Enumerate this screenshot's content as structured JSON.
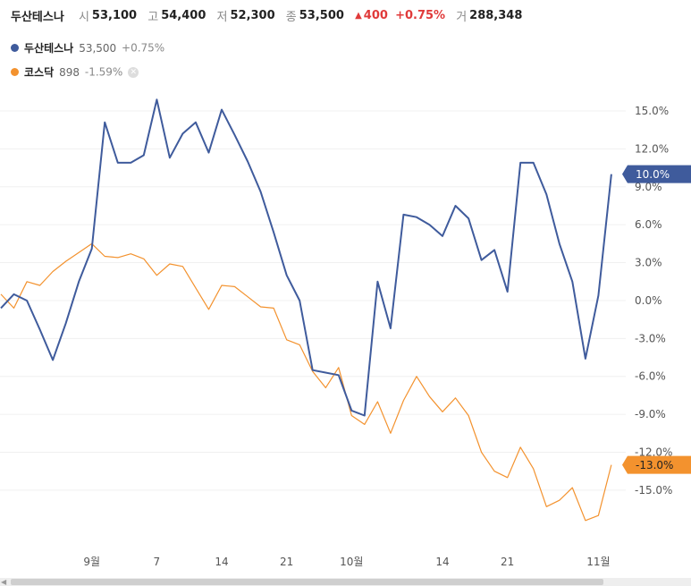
{
  "header": {
    "stock_name": "두산테스나",
    "open_label": "시",
    "open_value": "53,100",
    "high_label": "고",
    "high_value": "54,400",
    "low_label": "저",
    "low_value": "52,300",
    "close_label": "종",
    "close_value": "53,500",
    "change_value": "400",
    "change_pct": "+0.75%",
    "volume_label": "거",
    "volume_value": "288,348"
  },
  "legend": [
    {
      "name": "두산테스나",
      "value": "53,500",
      "change": "+0.75%",
      "color": "#3f5b9c"
    },
    {
      "name": "코스닥",
      "value": "898",
      "change": "-1.59%",
      "color": "#f3922e"
    }
  ],
  "chart_data": {
    "type": "line",
    "yunit": "%",
    "ylim": [
      -19.5,
      17.5
    ],
    "yticks": [
      "15.0%",
      "12.0%",
      "9.0%",
      "6.0%",
      "3.0%",
      "0.0%",
      "-3.0%",
      "-6.0%",
      "-9.0%",
      "-12.0%",
      "-15.0%"
    ],
    "ytick_values": [
      15,
      12,
      9,
      6,
      3,
      0,
      -3,
      -6,
      -9,
      -12,
      -15
    ],
    "xticks": [
      {
        "label": "9월",
        "index": 7
      },
      {
        "label": "7",
        "index": 12
      },
      {
        "label": "14",
        "index": 17
      },
      {
        "label": "21",
        "index": 22
      },
      {
        "label": "10월",
        "index": 27
      },
      {
        "label": "14",
        "index": 34
      },
      {
        "label": "21",
        "index": 39
      },
      {
        "label": "11월",
        "index": 46
      }
    ],
    "grid": true,
    "series": [
      {
        "name": "두산테스나",
        "color": "#3f5b9c",
        "last_label": "10.0%",
        "values": [
          -0.6,
          0.5,
          0.0,
          -2.3,
          -4.7,
          -1.8,
          1.5,
          4.1,
          14.1,
          10.9,
          10.9,
          11.5,
          15.9,
          11.3,
          13.2,
          14.1,
          11.7,
          15.1,
          13.1,
          11.0,
          8.6,
          5.4,
          2.0,
          0.0,
          -5.5,
          -5.7,
          -5.9,
          -8.7,
          -9.1,
          1.5,
          -2.2,
          6.8,
          6.6,
          6.0,
          5.1,
          7.5,
          6.5,
          3.2,
          4.0,
          0.7,
          10.9,
          10.9,
          8.4,
          4.5,
          1.5,
          -4.6,
          0.4,
          10.0
        ]
      },
      {
        "name": "코스닥",
        "color": "#f3922e",
        "last_label": "-13.0%",
        "values": [
          0.5,
          -0.6,
          1.5,
          1.2,
          2.3,
          3.1,
          3.8,
          4.5,
          3.5,
          3.4,
          3.7,
          3.3,
          2.0,
          2.9,
          2.7,
          1.0,
          -0.7,
          1.2,
          1.1,
          0.3,
          -0.5,
          -0.6,
          -3.1,
          -3.5,
          -5.6,
          -6.9,
          -5.3,
          -9.1,
          -9.8,
          -8.0,
          -10.5,
          -7.9,
          -6.0,
          -7.6,
          -8.8,
          -7.7,
          -9.1,
          -12.0,
          -13.5,
          -14.0,
          -11.6,
          -13.3,
          -16.3,
          -15.8,
          -14.8,
          -17.4,
          -17.0,
          -13.0
        ]
      }
    ]
  },
  "scrollbar": {
    "arrow": "◀"
  }
}
